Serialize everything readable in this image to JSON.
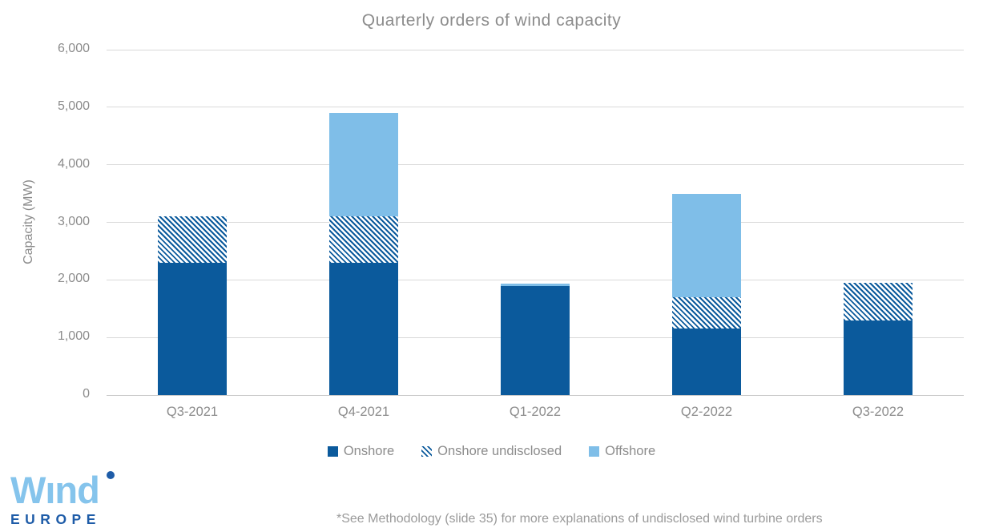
{
  "chart_data": {
    "type": "bar",
    "stacked": true,
    "title": "Quarterly orders of wind capacity",
    "xlabel": "",
    "ylabel": "Capacity (MW)",
    "ylim": [
      0,
      6000
    ],
    "ytick_step": 1000,
    "ytick_labels": [
      "0",
      "1,000",
      "2,000",
      "3,000",
      "4,000",
      "5,000",
      "6,000"
    ],
    "grid": true,
    "legend_position": "bottom",
    "categories": [
      "Q3-2021",
      "Q4-2021",
      "Q1-2022",
      "Q2-2022",
      "Q3-2022"
    ],
    "series": [
      {
        "name": "Onshore",
        "pattern": "solid",
        "color": "#0b5a9c",
        "values": [
          2300,
          2300,
          1900,
          1150,
          1300
        ]
      },
      {
        "name": "Onshore undisclosed",
        "pattern": "hatch",
        "color": "#0b5a9c",
        "values": [
          800,
          800,
          0,
          550,
          650
        ]
      },
      {
        "name": "Offshore",
        "pattern": "solid",
        "color": "#7fbee8",
        "values": [
          0,
          1800,
          30,
          1800,
          0
        ]
      }
    ]
  },
  "colors": {
    "onshore": "#0b5a9c",
    "offshore": "#7fbee8",
    "gridline": "#d9d9d9",
    "axis_text": "#8c8c8c",
    "logo_light_blue": "#85c4ec",
    "logo_dark_blue": "#1e5ca8"
  },
  "logo": {
    "wordmark": "Wınd",
    "subtext": "EUROPE"
  },
  "footnote": "*See Methodology (slide 35) for more explanations of undisclosed wind turbine orders"
}
